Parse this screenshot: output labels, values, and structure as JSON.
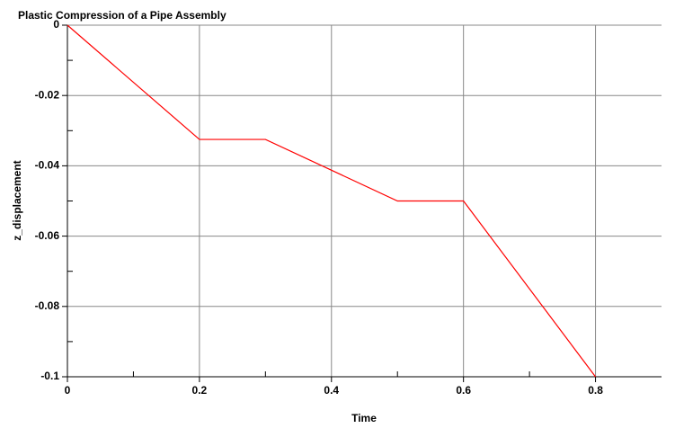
{
  "chart_data": {
    "type": "line",
    "title": "Plastic Compression of a Pipe Assembly",
    "x_label": "Time",
    "y_label": "z_displacement",
    "x": [
      0,
      0.2,
      0.3,
      0.5,
      0.6,
      0.8
    ],
    "series": [
      {
        "color": "#ff0000",
        "values": [
          0,
          -0.0325,
          -0.0325,
          -0.05,
          -0.05,
          -0.1
        ]
      }
    ],
    "xlim": [
      0,
      0.9
    ],
    "ylim": [
      -0.1,
      0
    ],
    "xticks": [
      0,
      0.2,
      0.4,
      0.6,
      0.8
    ],
    "yticks": [
      0,
      -0.02,
      -0.04,
      -0.06,
      -0.08,
      -0.1
    ],
    "xminorticks": [
      0.1,
      0.3,
      0.5,
      0.7
    ],
    "yminorticks": [
      -0.01,
      -0.03,
      -0.05,
      -0.07,
      -0.09
    ],
    "grid": true
  }
}
